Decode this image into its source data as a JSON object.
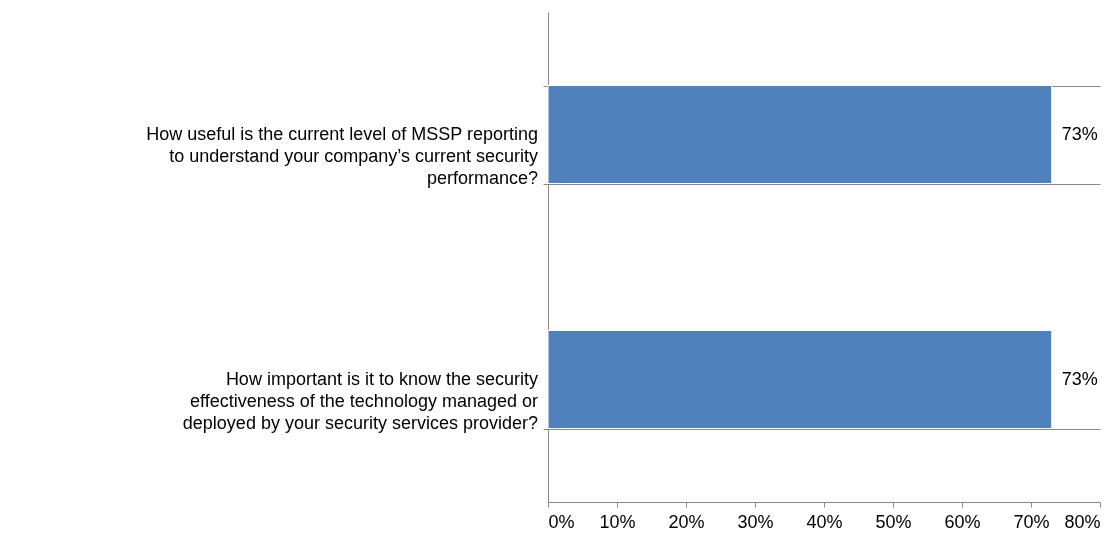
{
  "chart_data": {
    "type": "bar",
    "orientation": "horizontal",
    "categories": [
      "How useful is the current level of MSSP reporting to understand your company’s current security performance?",
      "How important is it to know the security effectiveness of the technology managed or deployed by your security services provider?"
    ],
    "values": [
      73,
      73
    ],
    "value_labels": [
      "73%",
      "73%"
    ],
    "color": "#4f81bd",
    "xlim": [
      0,
      80
    ],
    "xticks": [
      {
        "value": 0,
        "label": "0%"
      },
      {
        "value": 10,
        "label": "10%"
      },
      {
        "value": 20,
        "label": "20%"
      },
      {
        "value": 30,
        "label": "30%"
      },
      {
        "value": 40,
        "label": "40%"
      },
      {
        "value": 50,
        "label": "50%"
      },
      {
        "value": 60,
        "label": "60%"
      },
      {
        "value": 70,
        "label": "70%"
      },
      {
        "value": 80,
        "label": "80%"
      }
    ],
    "grid": "y"
  }
}
